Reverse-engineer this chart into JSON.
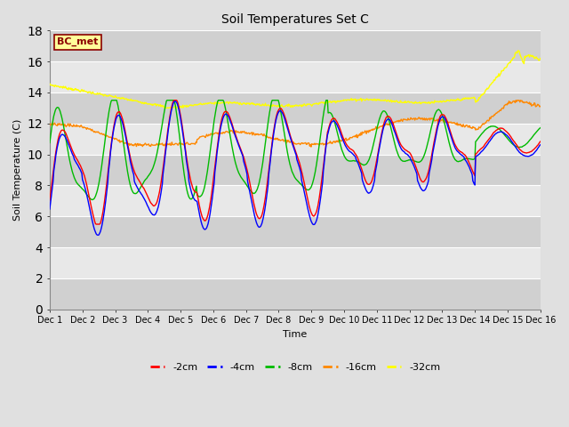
{
  "title": "Soil Temperatures Set C",
  "xlabel": "Time",
  "ylabel": "Soil Temperature (C)",
  "ylim": [
    0,
    18
  ],
  "yticks": [
    0,
    2,
    4,
    6,
    8,
    10,
    12,
    14,
    16,
    18
  ],
  "xtick_labels": [
    "Dec 1",
    "Dec 2",
    "Dec 3",
    "Dec 4",
    "Dec 5",
    "Dec 6",
    "Dec 7",
    "Dec 8",
    "Dec 9",
    "Dec 10",
    "Dec 11",
    "Dec 12",
    "Dec 13",
    "Dec 14",
    "Dec 15",
    "Dec 16"
  ],
  "annotation_text": "BC_met",
  "annotation_bg": "#ffff99",
  "annotation_border": "#8B0000",
  "series_colors": {
    "2cm": "#ff0000",
    "4cm": "#0000ff",
    "8cm": "#00bb00",
    "16cm": "#ff8800",
    "32cm": "#ffff00"
  },
  "legend_labels": [
    "-2cm",
    "-4cm",
    "-8cm",
    "-16cm",
    "-32cm"
  ],
  "legend_colors": [
    "#ff0000",
    "#0000ff",
    "#00bb00",
    "#ff8800",
    "#ffff00"
  ],
  "bg_color": "#e0e0e0",
  "band_light": "#e8e8e8",
  "band_dark": "#d0d0d0",
  "n_points": 720
}
